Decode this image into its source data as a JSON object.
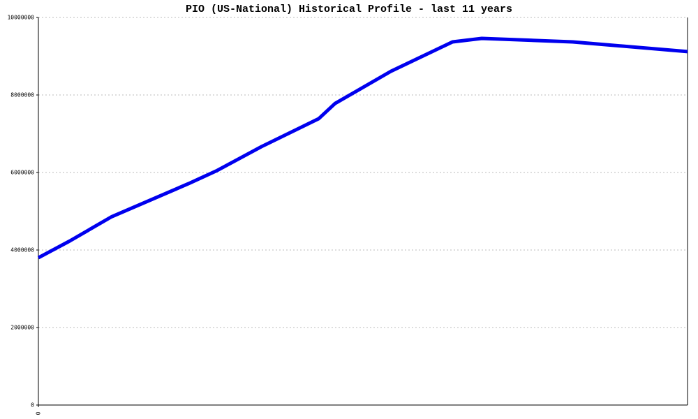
{
  "chart_data": {
    "type": "line",
    "title": "PIO (US-National) Historical Profile - last 11 years",
    "x": [
      0,
      4.8,
      11.3,
      23.1,
      27.4,
      34.4,
      43.2,
      45.7,
      54.3,
      63.8,
      68.3,
      82.3,
      100
    ],
    "series": [
      {
        "color": "#0000ee",
        "values": [
          3800000,
          4230000,
          4860000,
          5710000,
          6040000,
          6670000,
          7390000,
          7780000,
          8610000,
          9370000,
          9460000,
          9370000,
          9120000
        ]
      }
    ],
    "xlim": [
      0,
      100
    ],
    "xticks": [
      0
    ],
    "ylim": [
      0,
      10000000
    ],
    "yticks": [
      0,
      2000000,
      4000000,
      6000000,
      8000000,
      10000000
    ],
    "grid": true
  }
}
